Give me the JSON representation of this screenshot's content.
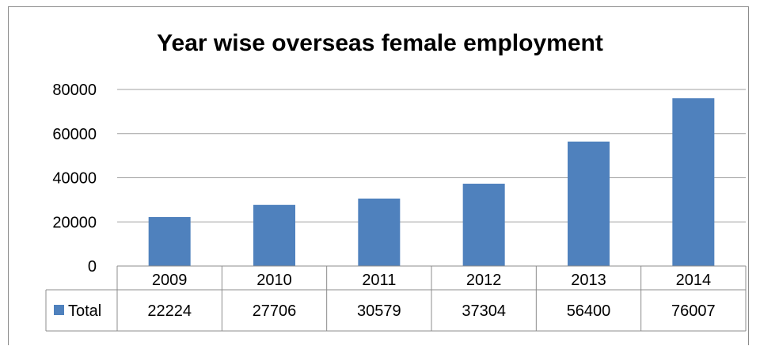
{
  "chart_data": {
    "type": "bar",
    "title": "Year wise overseas female employment",
    "xlabel": "",
    "ylabel": "",
    "categories": [
      "2009",
      "2010",
      "2011",
      "2012",
      "2013",
      "2014"
    ],
    "series": [
      {
        "name": "Total",
        "values": [
          22224,
          27706,
          30579,
          37304,
          56400,
          76007
        ]
      }
    ],
    "ylim": [
      0,
      80000
    ],
    "yticks": [
      "0",
      "20000",
      "40000",
      "60000",
      "80000"
    ],
    "table_values": [
      "22224",
      "27706",
      "30579",
      "37304",
      "56400",
      "76007"
    ],
    "grid": true,
    "legend_placement": "data-table",
    "colors": {
      "bar": "#4f81bd",
      "grid": "#a0a0a0",
      "table_border": "#8c8c8c"
    }
  }
}
